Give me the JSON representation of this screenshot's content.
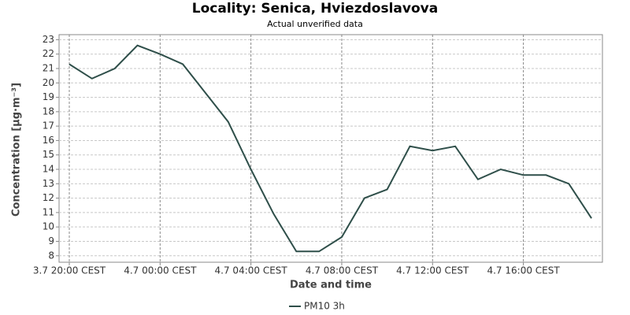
{
  "chart_data": {
    "type": "line",
    "title": "Locality: Senica, Hviezdoslavova",
    "subtitle": "Actual unverified data",
    "x_label": "Date and time",
    "y_label": "Concentration [µg·m⁻³]",
    "categories": [
      "3.7 20:00 CEST",
      null,
      null,
      null,
      "4.7 00:00 CEST",
      null,
      null,
      null,
      "4.7 04:00 CEST",
      null,
      null,
      null,
      "4.7 08:00 CEST",
      null,
      null,
      null,
      "4.7 12:00 CEST",
      null,
      null,
      null,
      "4.7 16:00 CEST",
      null,
      null,
      null
    ],
    "series": [
      {
        "name": "PM10 3h",
        "color": "#2f4f4a",
        "values": [
          21.3,
          20.3,
          21.0,
          22.6,
          22.0,
          21.3,
          19.3,
          17.3,
          14.0,
          10.9,
          8.3,
          8.3,
          9.3,
          12.0,
          12.6,
          15.6,
          15.3,
          15.6,
          13.3,
          14.0,
          13.6,
          13.6,
          13.0,
          10.6
        ]
      }
    ],
    "ylim": [
      7.55,
      23.35
    ],
    "yticks": [
      8,
      9,
      10,
      11,
      12,
      13,
      14,
      15,
      16,
      17,
      18,
      19,
      20,
      21,
      22,
      23
    ],
    "grid": true,
    "legend": "bottom"
  }
}
